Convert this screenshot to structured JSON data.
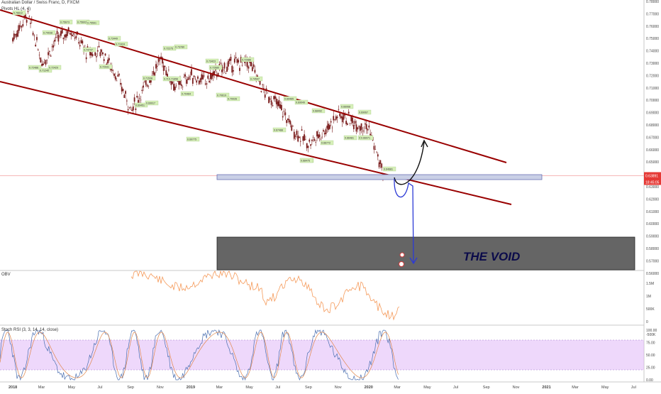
{
  "header": {
    "symbol_title": "Australian Dollar / Swiss Franc, D, FXCM",
    "pivots_label": "Pivots HL (4, 4)"
  },
  "price_axis": {
    "ticks": [
      "0.78000",
      "0.77000",
      "0.76000",
      "0.75000",
      "0.74000",
      "0.73000",
      "0.72000",
      "0.71000",
      "0.70000",
      "0.69000",
      "0.68000",
      "0.67000",
      "0.66000",
      "0.65000",
      "0.64000",
      "0.63000",
      "0.62000",
      "0.61000",
      "0.60000",
      "0.59000",
      "0.58000",
      "0.57000",
      "0.56000"
    ],
    "last_price": "0.63891",
    "countdown": "18:45:05"
  },
  "time_axis": {
    "labels": [
      "2018",
      "Mar",
      "May",
      "Jul",
      "Sep",
      "Nov",
      "2019",
      "Mar",
      "May",
      "Jul",
      "Sep",
      "Nov",
      "2020",
      "Mar",
      "May",
      "Jul",
      "Sep",
      "Nov",
      "2021",
      "Mar",
      "May",
      "Jul"
    ]
  },
  "annotation": {
    "void_label": "THE VOID"
  },
  "obv": {
    "label": "OBV",
    "ticks": [
      "1.5M",
      "1M",
      "500K",
      "0",
      "-500K"
    ]
  },
  "stoch": {
    "label": "Stoch RSI (3, 3, 14, 14, close)",
    "ticks": [
      "100.00",
      "75.00",
      "50.00",
      "25.00",
      "0.00"
    ]
  },
  "pivot_labels": [
    "0.76612",
    "0.74038",
    "0.75673",
    "0.75603",
    "0.74747",
    "0.75591",
    "0.72488",
    "0.71240",
    "0.72429",
    "0.72931",
    "0.73449",
    "0.71924",
    "0.72275",
    "0.73780",
    "0.69451",
    "0.69917",
    "0.71538",
    "0.70684",
    "0.73423",
    "0.72680",
    "0.71656",
    "0.70464",
    "0.70619",
    "0.70026",
    "0.72986",
    "0.74547",
    "0.69775",
    "0.69465",
    "0.69049",
    "0.67488",
    "0.66772",
    "0.66513",
    "0.68492",
    "0.66481",
    "0.66068",
    "0.69067",
    "0.69148",
    "0.68475",
    "0.66971",
    "0.64681"
  ],
  "colors": {
    "channel": "#990000",
    "candle": "#7a1c1c",
    "zone": "#3a3a3a",
    "support_box": "#c9cfe6",
    "obv_line": "#f59a5a",
    "stoch_band": "#e0b8f7",
    "stoch_k": "#4a6fb0",
    "stoch_d": "#e0864a",
    "path_up": "#111111",
    "path_down": "#2c3ad6",
    "price_tag": "#e53935"
  },
  "chart_data": [
    {
      "type": "line",
      "title": "Australian Dollar / Swiss Franc, D, FXCM",
      "x_range": [
        "2018-01",
        "2021-08"
      ],
      "ylim": [
        0.56,
        0.78
      ],
      "series": [
        {
          "x": [
            "2018-01",
            "2018-02",
            "2018-03",
            "2018-04",
            "2018-05",
            "2018-06",
            "2018-07",
            "2018-08",
            "2018-09",
            "2018-10",
            "2018-11",
            "2018-12",
            "2019-01",
            "2019-02",
            "2019-03",
            "2019-04",
            "2019-05",
            "2019-06",
            "2019-07",
            "2019-08",
            "2019-09",
            "2019-10",
            "2019-11",
            "2019-12",
            "2020-01",
            "2020-02"
          ],
          "values": [
            0.75,
            0.77,
            0.73,
            0.75,
            0.757,
            0.738,
            0.74,
            0.72,
            0.692,
            0.713,
            0.733,
            0.71,
            0.72,
            0.715,
            0.725,
            0.73,
            0.73,
            0.706,
            0.695,
            0.675,
            0.665,
            0.675,
            0.689,
            0.682,
            0.678,
            0.639
          ]
        }
      ],
      "annotations": [
        "THE VOID"
      ]
    },
    {
      "type": "line",
      "title": "OBV",
      "yticks": [
        "1.5M",
        "1M",
        "500K",
        "0",
        "-500K"
      ]
    },
    {
      "type": "line",
      "title": "Stoch RSI (3, 3, 14, 14, close)",
      "ylim": [
        0,
        100
      ],
      "band": [
        20,
        80
      ]
    }
  ]
}
